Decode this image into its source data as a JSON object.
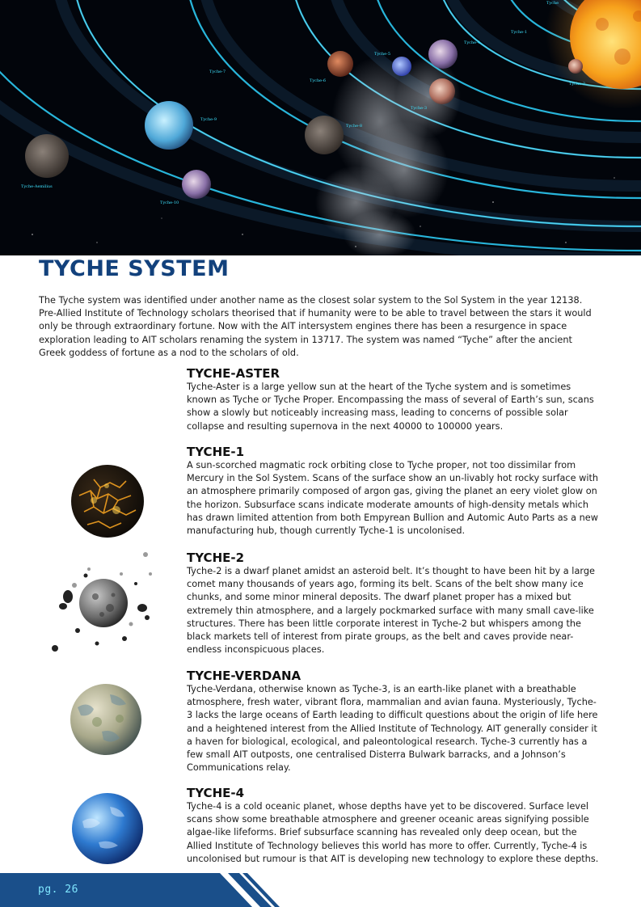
{
  "hero": {
    "labels": {
      "tyche": "Tyche",
      "t1": "Tyche-1",
      "t2": "Tyche-2",
      "t3": "Tyche-3",
      "t4": "Tyche-4",
      "t5": "Tyche-5",
      "t6": "Tyche-6",
      "t7": "Tyche-7",
      "t8": "Tyche-8",
      "t9": "Tyche-9",
      "t10": "Tyche-10",
      "aemilius": "Tyche-Aemilius",
      "t4b": "Tyche-4"
    }
  },
  "title": "TYCHE SYSTEM",
  "intro": "The Tyche system was identified under another name as the closest solar system to the Sol System in the year 12138. Pre-Allied Institute of Technology scholars theorised that if humanity were to be able to travel between the stars it would only be through extraordinary fortune. Now with the AIT intersystem engines there has been a resurgence in space exploration leading to AIT scholars renaming the system in 13717. The system was named “Tyche” after the ancient Greek goddess of fortune as a nod to the scholars of old.",
  "sections": {
    "aster": {
      "heading": "TYCHE-ASTER",
      "text": "Tyche-Aster is a large yellow sun at the heart of the Tyche system and is sometimes known as Tyche or Tyche Proper. Encompassing the mass of several of Earth’s sun, scans show a slowly but noticeably increasing mass, leading to concerns of possible solar collapse and resulting supernova in the next 40000 to 100000 years."
    },
    "t1": {
      "heading": "TYCHE-1",
      "text": "A sun-scorched magmatic rock orbiting close to Tyche proper, not too dissimilar from Mercury in the Sol System. Scans of the surface show an un-livably hot rocky surface with an atmosphere primarily composed of argon gas, giving the planet an eery violet glow on the horizon. Subsurface scans indicate moderate amounts of high-density metals which has drawn limited attention from both Empyrean Bullion and Automic Auto Parts as a new manufacturing hub, though currently Tyche-1 is uncolonised."
    },
    "t2": {
      "heading": "TYCHE-2",
      "text": "Tyche-2 is a dwarf planet amidst an asteroid belt. It’s thought to have been hit by a large comet many thousands of years ago, forming its belt. Scans of the belt show many ice chunks, and some minor mineral deposits. The dwarf planet proper has a mixed but extremely thin atmosphere, and a largely pockmarked surface with many small cave-like structures. There has been little corporate interest in Tyche-2 but whispers among the black markets tell of interest from pirate groups, as the belt and caves provide near-endless inconspicuous places."
    },
    "verdana": {
      "heading": "TYCHE-VERDANA",
      "text": "Tyche-Verdana, otherwise known as Tyche-3, is an earth-like planet with a breathable atmosphere, fresh water, vibrant flora, mammalian and avian fauna. Mysteriously, Tyche-3 lacks the large oceans of Earth leading to difficult questions about the origin of life here and a heightened interest from the Allied Institute of Technology. AIT generally consider it a haven for biological, ecological, and paleontological research. Tyche-3 currently has a few small AIT outposts, one centralised Disterra Bulwark barracks, and a Johnson’s Communications relay."
    },
    "t4": {
      "heading": "TYCHE-4",
      "text": "Tyche-4 is a cold oceanic planet, whose depths have yet to be discovered. Surface level scans show some breathable atmosphere and greener oceanic areas signifying possible algae-like lifeforms. Brief subsurface scanning has revealed only deep ocean, but the Allied Institute of Technology believes this world has more to offer. Currently, Tyche-4 is uncolonised but rumour is that AIT is developing new technology to explore these depths."
    }
  },
  "footer": {
    "page_number": "pg. 26"
  }
}
